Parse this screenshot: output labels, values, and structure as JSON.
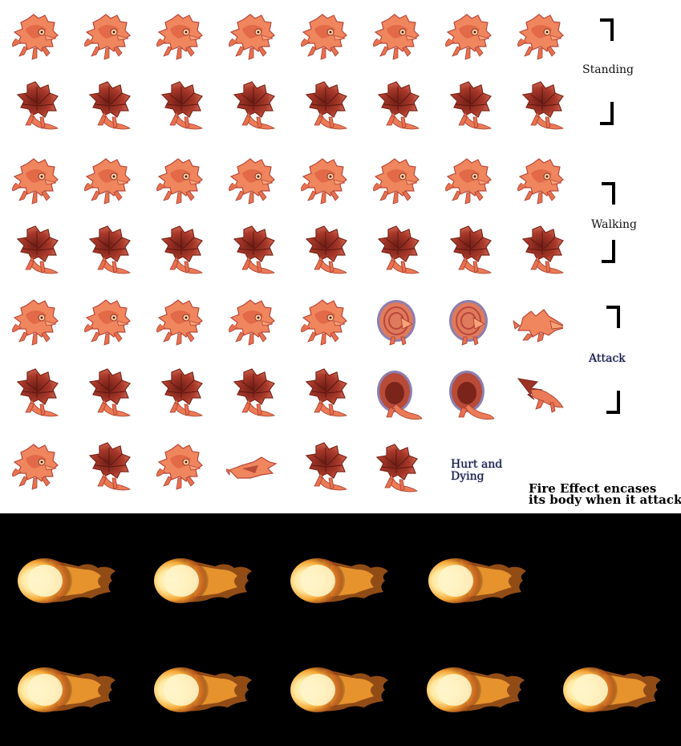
{
  "sprite_sheet": {
    "creature_color": "#e8704e",
    "shell_color": "#9c3428",
    "rows": [
      {
        "row": 1,
        "frames": 8,
        "facing": "front",
        "pose": "standing"
      },
      {
        "row": 2,
        "frames": 8,
        "facing": "back",
        "pose": "standing"
      },
      {
        "row": 3,
        "frames": 8,
        "facing": "front",
        "pose": "walking"
      },
      {
        "row": 4,
        "frames": 8,
        "facing": "back",
        "pose": "walking"
      },
      {
        "row": 5,
        "frames": 8,
        "facing": "front",
        "pose": "attack"
      },
      {
        "row": 6,
        "frames": 8,
        "facing": "back",
        "pose": "attack"
      },
      {
        "row": 7,
        "frames": 6,
        "facing": "mixed",
        "pose": "hurt-and-dying"
      }
    ]
  },
  "labels": {
    "standing": "Standing",
    "walking": "Walking",
    "attack": "Attack",
    "hurt_line1": "Hurt and",
    "hurt_line2": "Dying",
    "fire_note_line1": "Fire Effect encases",
    "fire_note_line2": "its body when it attacks"
  },
  "fire_effect": {
    "background": "#000000",
    "core_color": "#fff6c8",
    "flame_color": "#f0a030",
    "rows": [
      {
        "row": 1,
        "frames": 4
      },
      {
        "row": 2,
        "frames": 5
      }
    ]
  }
}
